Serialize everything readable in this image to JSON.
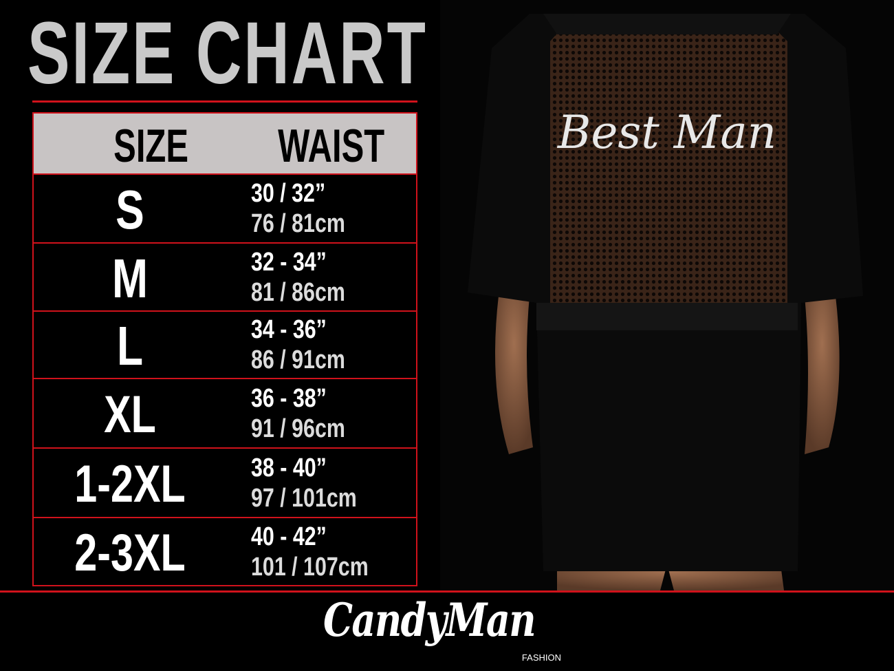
{
  "title": "SIZE CHART",
  "table": {
    "headers": [
      "SIZE",
      "WAIST"
    ],
    "rows": [
      {
        "size": "S",
        "inches": "30 / 32”",
        "cm": "76 / 81cm"
      },
      {
        "size": "M",
        "inches": "32 - 34”",
        "cm": "81 / 86cm"
      },
      {
        "size": "L",
        "inches": "34 - 36”",
        "cm": "86 / 91cm"
      },
      {
        "size": "XL",
        "inches": "36 - 38”",
        "cm": "91 / 96cm"
      },
      {
        "size": "1-2XL",
        "inches": "38 - 40”",
        "cm": "97 / 101cm"
      },
      {
        "size": "2-3XL",
        "inches": "40 - 42”",
        "cm": "101 / 107cm"
      }
    ]
  },
  "photo": {
    "garment_text": "Best Man"
  },
  "logo": {
    "brand": "CandyMan",
    "sub": "FASHION"
  },
  "colors": {
    "accent": "#d0121b",
    "header_bg": "#c8c4c4",
    "title": "#c9c9c9",
    "background": "#000000"
  }
}
